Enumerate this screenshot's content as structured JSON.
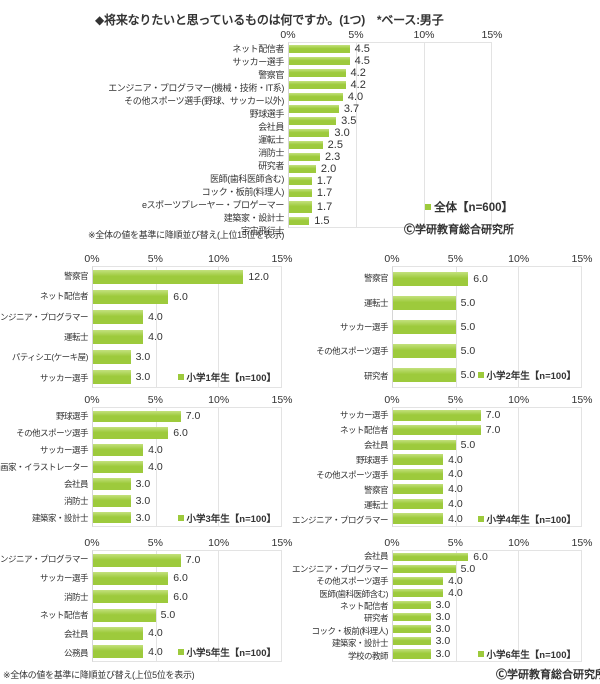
{
  "title": "◆将来なりたいと思っているものは何ですか。(1つ)　*ベース:男子",
  "notes": {
    "main": "※全体の値を基準に降順並び替え(上位15位を表示)",
    "bottom": "※全体の値を基準に降順並び替え(上位5位を表示)"
  },
  "copyright": "Ⓒ学研教育総合研究所",
  "colors": {
    "bar": "#9dca3c",
    "bar_top": "#c3e17d",
    "text": "#333333",
    "grid": "#e3e3e3",
    "axis_line": "#d6d6d6"
  },
  "axis_ticks": [
    "0%",
    "5%",
    "10%",
    "15%"
  ],
  "chart_data": [
    {
      "id": "overall",
      "type": "bar",
      "orientation": "horizontal",
      "legend": "全体【n=600】",
      "xlim": [
        0,
        15
      ],
      "tick_labels": [
        "0%",
        "5%",
        "10%",
        "15%"
      ],
      "categories": [
        "ネット配信者",
        "サッカー選手",
        "警察官",
        "エンジニア・プログラマー(機械・技術・IT系)",
        "その他スポーツ選手(野球、サッカー以外)",
        "野球選手",
        "会社員",
        "運転士",
        "消防士",
        "研究者",
        "医師(歯科医師含む)",
        "コック・板前(料理人)",
        "eスポーツプレーヤー・プロゲーマー",
        "建築家・設計士",
        "宇宙飛行士"
      ],
      "values": [
        4.5,
        4.5,
        4.2,
        4.2,
        4.0,
        3.7,
        3.5,
        3.0,
        2.5,
        2.3,
        2.0,
        1.7,
        1.7,
        1.7,
        1.5
      ]
    },
    {
      "id": "grade1",
      "type": "bar",
      "orientation": "horizontal",
      "legend": "小学1年生【n=100】",
      "xlim": [
        0,
        15
      ],
      "categories": [
        "警察官",
        "ネット配信者",
        "エンジニア・プログラマー",
        "運転士",
        "パティシエ(ケーキ屋)",
        "サッカー選手"
      ],
      "values": [
        12.0,
        6.0,
        4.0,
        4.0,
        3.0,
        3.0
      ]
    },
    {
      "id": "grade2",
      "type": "bar",
      "orientation": "horizontal",
      "legend": "小学2年生【n=100】",
      "xlim": [
        0,
        15
      ],
      "categories": [
        "警察官",
        "運転士",
        "サッカー選手",
        "その他スポーツ選手",
        "研究者"
      ],
      "values": [
        6.0,
        5.0,
        5.0,
        5.0,
        5.0
      ]
    },
    {
      "id": "grade3",
      "type": "bar",
      "orientation": "horizontal",
      "legend": "小学3年生【n=100】",
      "xlim": [
        0,
        15
      ],
      "categories": [
        "野球選手",
        "その他スポーツ選手",
        "サッカー選手",
        "漫画家・イラストレーター",
        "会社員",
        "消防士",
        "建築家・設計士"
      ],
      "values": [
        7.0,
        6.0,
        4.0,
        4.0,
        3.0,
        3.0,
        3.0
      ]
    },
    {
      "id": "grade4",
      "type": "bar",
      "orientation": "horizontal",
      "legend": "小学4年生【n=100】",
      "xlim": [
        0,
        15
      ],
      "categories": [
        "サッカー選手",
        "ネット配信者",
        "会社員",
        "野球選手",
        "その他スポーツ選手",
        "警察官",
        "運転士",
        "エンジニア・プログラマー"
      ],
      "values": [
        7.0,
        7.0,
        5.0,
        4.0,
        4.0,
        4.0,
        4.0,
        4.0
      ]
    },
    {
      "id": "grade5",
      "type": "bar",
      "orientation": "horizontal",
      "legend": "小学5年生【n=100】",
      "xlim": [
        0,
        15
      ],
      "categories": [
        "エンジニア・プログラマー",
        "サッカー選手",
        "消防士",
        "ネット配信者",
        "会社員",
        "公務員"
      ],
      "values": [
        7.0,
        6.0,
        6.0,
        5.0,
        4.0,
        4.0
      ]
    },
    {
      "id": "grade6",
      "type": "bar",
      "orientation": "horizontal",
      "legend": "小学6年生【n=100】",
      "xlim": [
        0,
        15
      ],
      "categories": [
        "会社員",
        "エンジニア・プログラマー",
        "その他スポーツ選手",
        "医師(歯科医師含む)",
        "ネット配信者",
        "研究者",
        "コック・板前(料理人)",
        "建築家・設計士",
        "学校の教師"
      ],
      "values": [
        6.0,
        5.0,
        4.0,
        4.0,
        3.0,
        3.0,
        3.0,
        3.0,
        3.0
      ]
    }
  ]
}
